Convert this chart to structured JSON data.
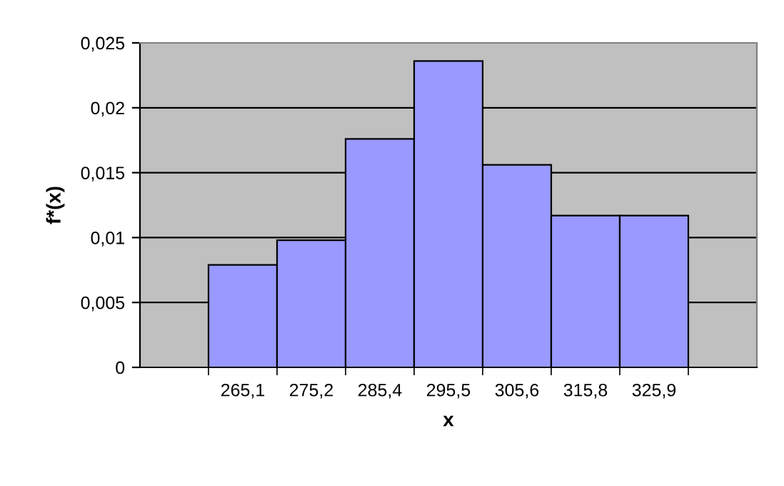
{
  "chart_data": {
    "type": "bar",
    "xlabel": "x",
    "ylabel": "f*(x)",
    "categories": [
      null,
      "265,1",
      "275,2",
      "285,4",
      "295,5",
      "305,6",
      "315,8",
      "325,9",
      null
    ],
    "values": [
      null,
      0.0079,
      0.0098,
      0.0176,
      0.0236,
      0.0156,
      0.0117,
      0.0117,
      null
    ],
    "color": "#9999ff",
    "ylim": [
      0,
      0.025
    ],
    "yticks": [
      0,
      {
        "value": 0.005,
        "label": "0,005"
      },
      {
        "value": 0.01,
        "label": "0,01"
      },
      {
        "value": 0.015,
        "label": "0,015"
      },
      {
        "value": 0.02,
        "label": "0,02"
      },
      {
        "value": 0.025,
        "label": "0,025"
      }
    ],
    "grid": "y",
    "legend": false
  }
}
